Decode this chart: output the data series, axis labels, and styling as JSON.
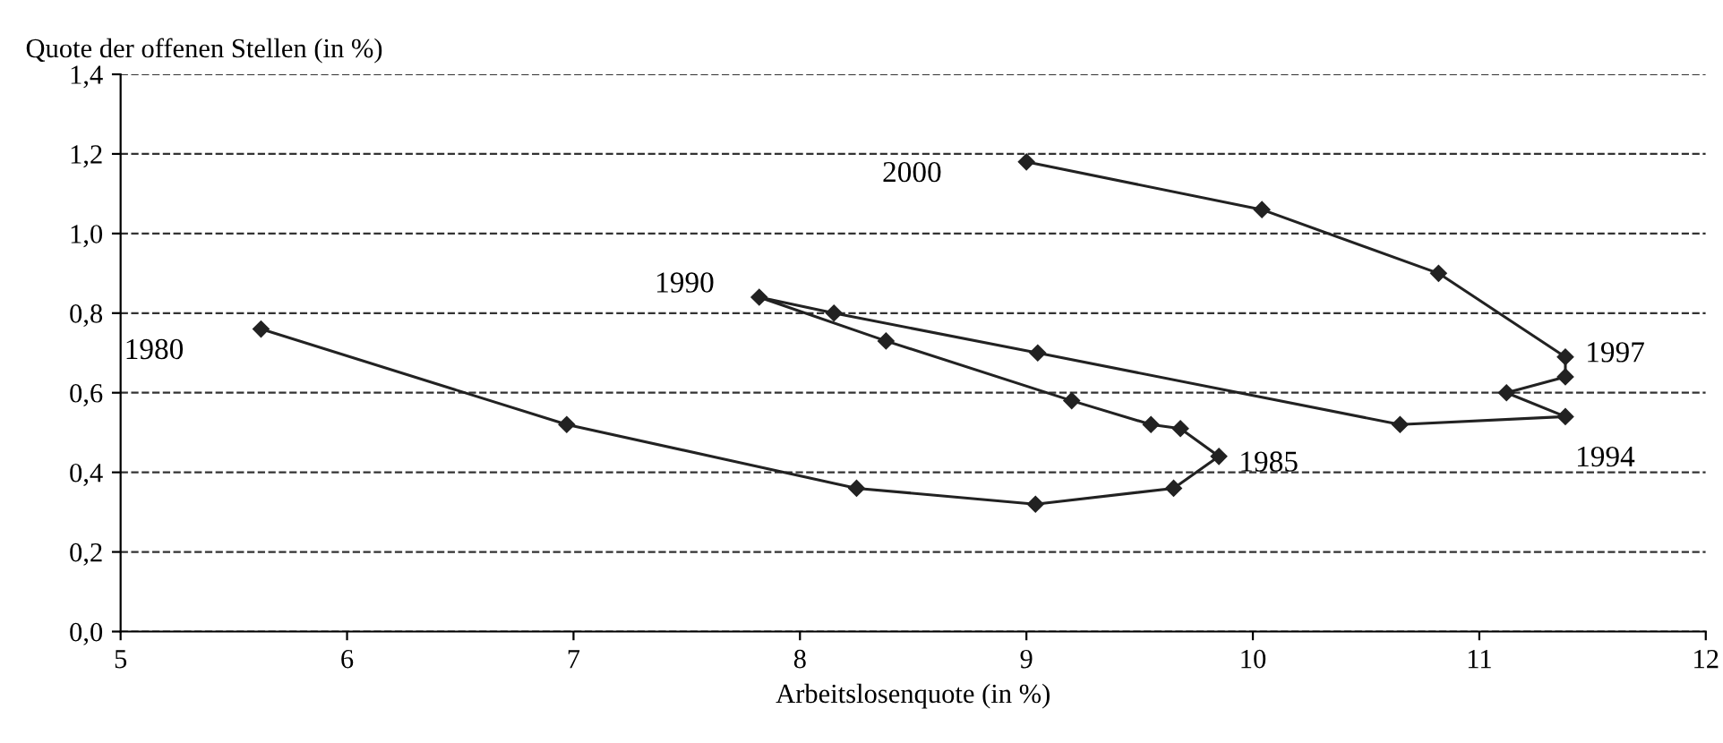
{
  "chart_data": {
    "type": "line",
    "xlabel": "Arbeitslosenquote (in %)",
    "ylabel": "Quote der offenen Stellen (in %)",
    "xlim": [
      5,
      12
    ],
    "xticks": [
      5,
      6,
      7,
      8,
      9,
      10,
      11,
      12
    ],
    "ylim": [
      0,
      1.4
    ],
    "yticks": [
      {
        "value": 0,
        "label": "0,0"
      },
      {
        "value": 0.2,
        "label": "0,2"
      },
      {
        "value": 0.4,
        "label": "0,4"
      },
      {
        "value": 0.6,
        "label": "0,6"
      },
      {
        "value": 0.8,
        "label": "0,8"
      },
      {
        "value": 1.0,
        "label": "1,0"
      },
      {
        "value": 1.2,
        "label": "1,2"
      },
      {
        "value": 1.4,
        "label": "1,4"
      }
    ],
    "grid": "y",
    "marker": "diamond",
    "line_style": "solid",
    "series": [
      {
        "color": "#222222",
        "x": [
          5.62,
          6.97,
          8.25,
          9.04,
          9.65,
          9.85,
          9.68,
          9.55,
          9.2,
          8.38,
          7.82,
          8.15,
          9.05,
          10.65,
          11.38,
          11.12,
          11.38,
          11.38,
          10.82,
          10.04,
          9.0
        ],
        "values": [
          0.76,
          0.52,
          0.36,
          0.32,
          0.36,
          0.44,
          0.51,
          0.52,
          0.58,
          0.73,
          0.84,
          0.8,
          0.7,
          0.52,
          0.54,
          0.6,
          0.64,
          0.69,
          0.9,
          1.06,
          1.18
        ]
      }
    ],
    "annotations": [
      {
        "text": "1980",
        "x": 5.62,
        "y": 0.76
      },
      {
        "text": "1985",
        "x": 9.85,
        "y": 0.44
      },
      {
        "text": "1990",
        "x": 7.82,
        "y": 0.84
      },
      {
        "text": "1994",
        "x": 11.38,
        "y": 0.54
      },
      {
        "text": "1997",
        "x": 11.38,
        "y": 0.69
      },
      {
        "text": "2000",
        "x": 9.0,
        "y": 1.18
      }
    ]
  }
}
